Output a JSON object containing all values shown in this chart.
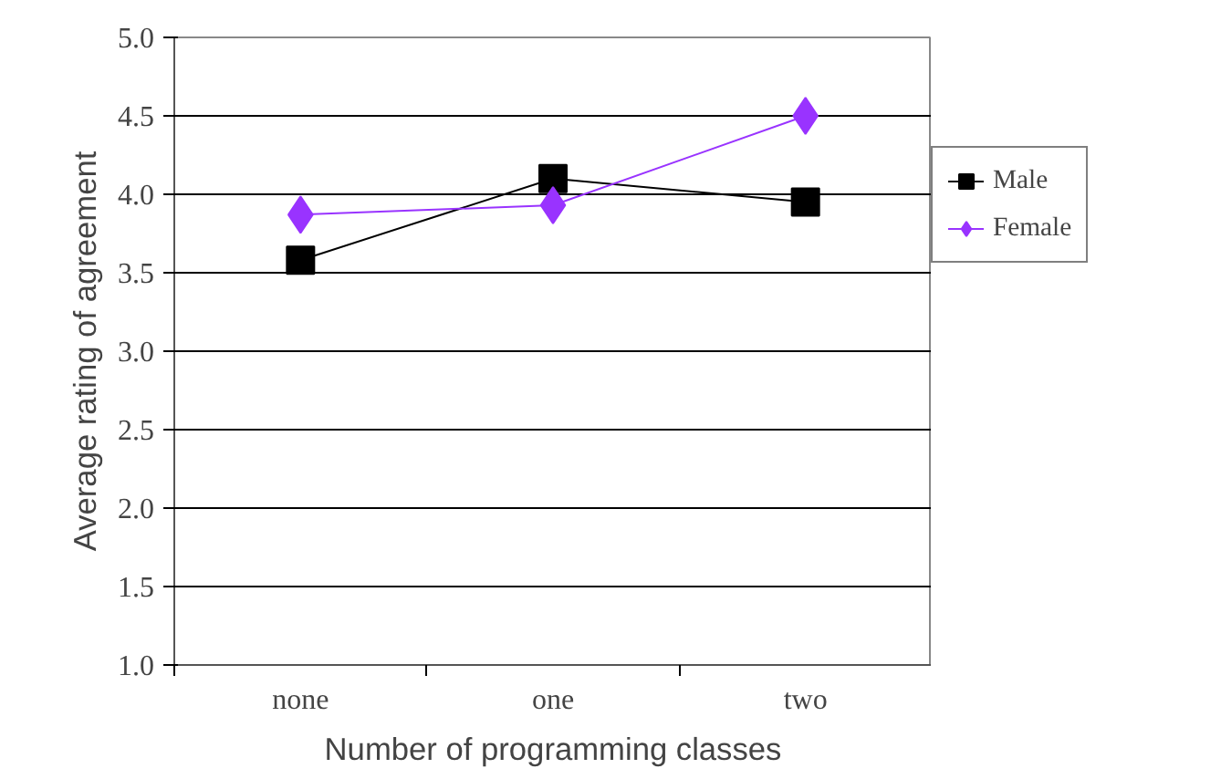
{
  "chart_data": {
    "type": "line",
    "xlabel": "Number of programming classes",
    "ylabel": "Average rating of agreement",
    "categories": [
      "none",
      "one",
      "two"
    ],
    "series": [
      {
        "name": "Male",
        "color": "#000000",
        "marker": "square",
        "values": [
          3.58,
          4.1,
          3.95
        ]
      },
      {
        "name": "Female",
        "color": "#9933ff",
        "marker": "diamond",
        "values": [
          3.87,
          3.93,
          4.5
        ]
      }
    ],
    "ylim": [
      1.0,
      5.0
    ],
    "yticks": [
      {
        "value": 1.0,
        "label": "1.0"
      },
      {
        "value": 1.5,
        "label": "1.5"
      },
      {
        "value": 2.0,
        "label": "2.0"
      },
      {
        "value": 2.5,
        "label": "2.5"
      },
      {
        "value": 3.0,
        "label": "3.0"
      },
      {
        "value": 3.5,
        "label": "3.5"
      },
      {
        "value": 4.0,
        "label": "4.0"
      },
      {
        "value": 4.5,
        "label": "4.5"
      },
      {
        "value": 5.0,
        "label": "5.0"
      }
    ],
    "grid": "y",
    "legend": "right",
    "line_style": "solid"
  }
}
